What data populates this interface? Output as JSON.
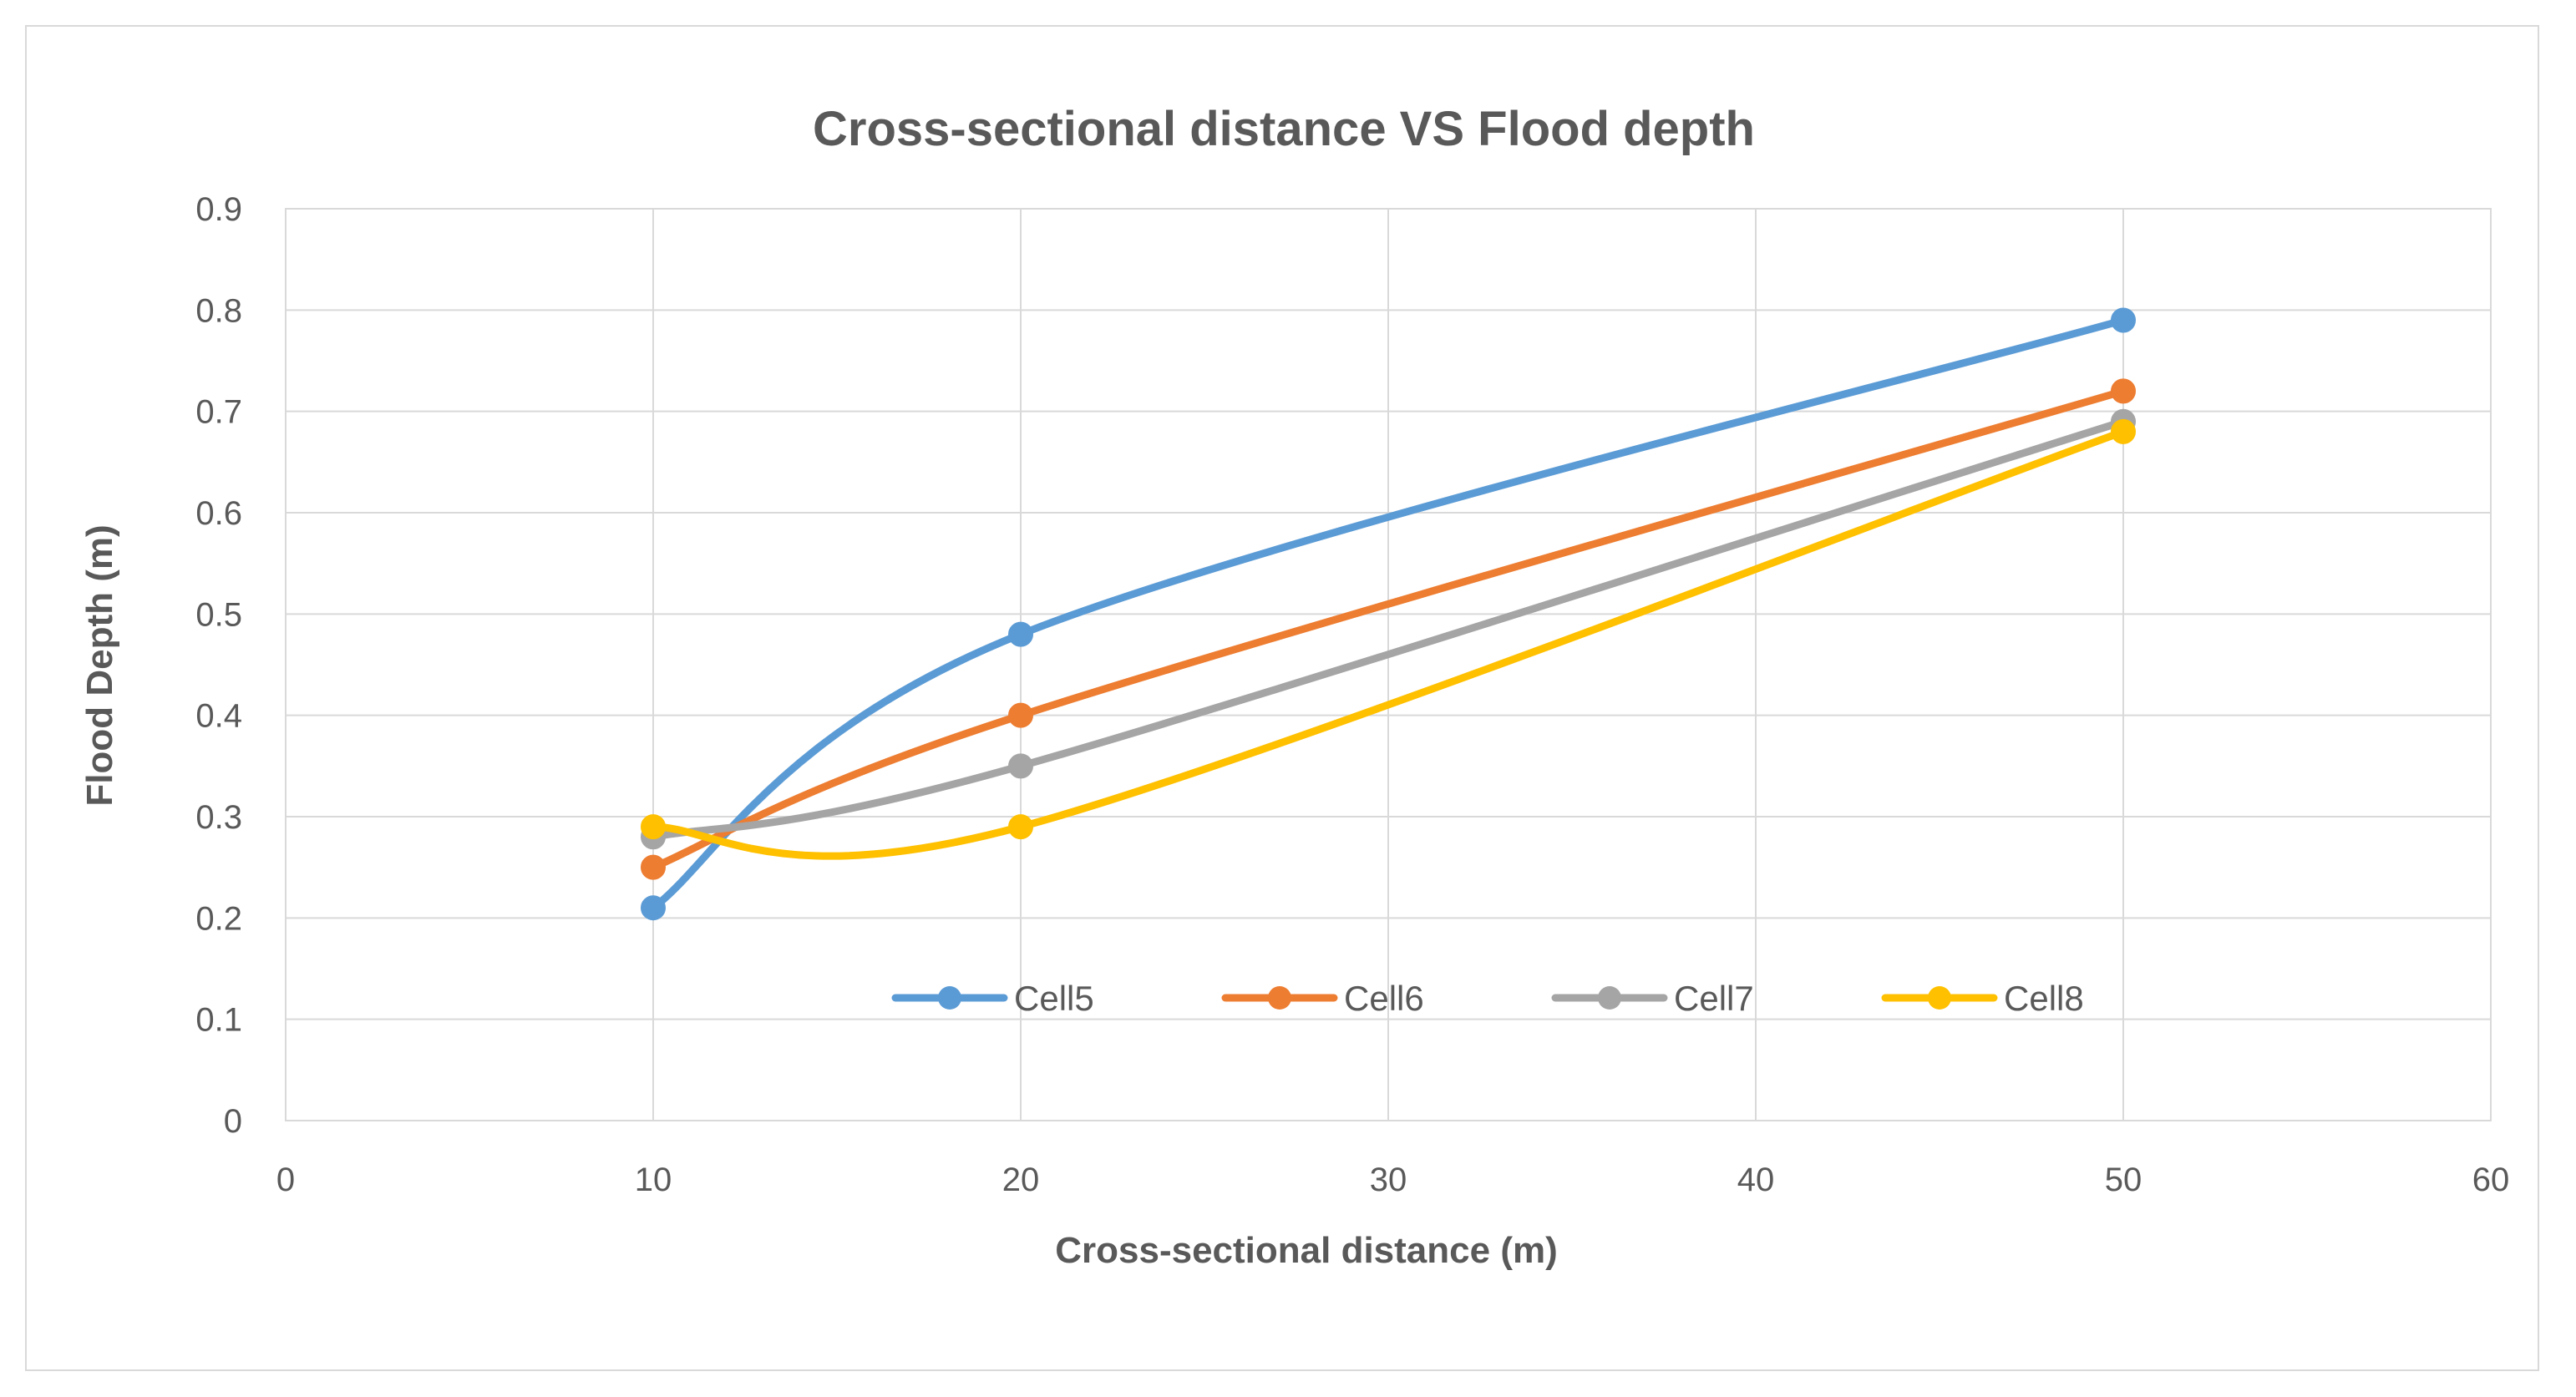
{
  "chart_data": {
    "type": "line",
    "title": "Cross-sectional distance VS Flood depth",
    "xlabel": "Cross-sectional distance (m)",
    "ylabel": "Flood Depth (m)",
    "xlim": [
      0,
      60
    ],
    "ylim": [
      0,
      0.9
    ],
    "x_ticks": [
      "0",
      "10",
      "20",
      "30",
      "40",
      "50",
      "60"
    ],
    "y_ticks": [
      "0",
      "0.1",
      "0.2",
      "0.3",
      "0.4",
      "0.5",
      "0.6",
      "0.7",
      "0.8",
      "0.9"
    ],
    "grid": true,
    "smooth": true,
    "legend_position": "inside-bottom-center",
    "x": [
      10,
      20,
      50
    ],
    "series": [
      {
        "name": "Cell5",
        "values": [
          0.21,
          0.48,
          0.79
        ],
        "color": "#5B9BD5"
      },
      {
        "name": "Cell6",
        "values": [
          0.25,
          0.4,
          0.72
        ],
        "color": "#ED7D31"
      },
      {
        "name": "Cell7",
        "values": [
          0.28,
          0.35,
          0.69
        ],
        "color": "#A5A5A5"
      },
      {
        "name": "Cell8",
        "values": [
          0.29,
          0.29,
          0.68
        ],
        "color": "#FFC000"
      }
    ]
  }
}
